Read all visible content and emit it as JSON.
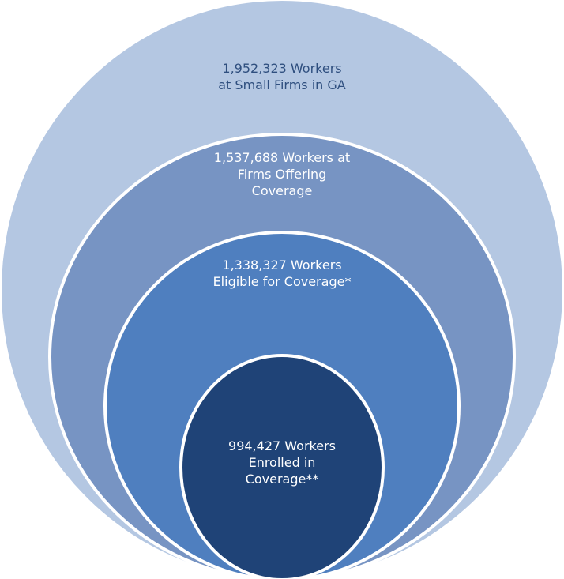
{
  "diagram": {
    "type": "nested-circles",
    "colors": {
      "outer": "#b4c7e2",
      "offering": "#7794c3",
      "eligible": "#4f7fbf",
      "enrolled": "#1f4377",
      "ring_stroke": "#ffffff",
      "outer_text": "#2f4f7f",
      "inner_text": "#ffffff"
    },
    "circles": [
      {
        "id": "small-firms",
        "value": 1952323,
        "lines": [
          "1,952,323 Workers",
          "at Small Firms in GA"
        ]
      },
      {
        "id": "firms-offering-coverage",
        "value": 1537688,
        "lines": [
          "1,537,688 Workers at",
          "Firms Offering",
          "Coverage"
        ]
      },
      {
        "id": "eligible-for-coverage",
        "value": 1338327,
        "lines": [
          "1,338,327 Workers",
          "Eligible for Coverage*"
        ]
      },
      {
        "id": "enrolled-in-coverage",
        "value": 994427,
        "lines": [
          "994,427 Workers",
          "Enrolled in",
          "Coverage**"
        ]
      }
    ]
  }
}
